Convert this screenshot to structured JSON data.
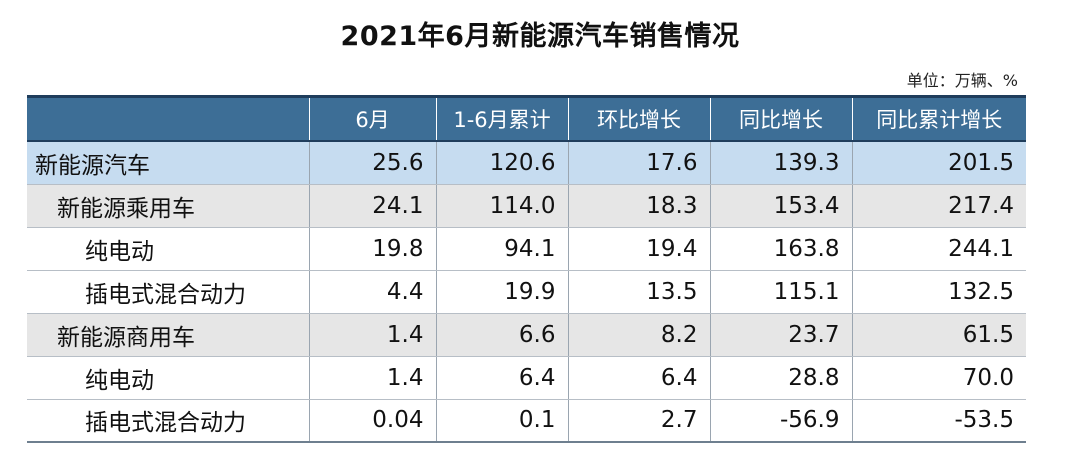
{
  "title": "2021年6月新能源汽车销售情况",
  "unit": "单位：万辆、%",
  "chart_data": {
    "type": "table",
    "title": "2021年6月新能源汽车销售情况",
    "unit": "单位：万辆、%",
    "columns": [
      "",
      "6月",
      "1-6月累计",
      "环比增长",
      "同比增长",
      "同比累计增长"
    ],
    "rows": [
      {
        "name": "新能源汽车",
        "level": 0,
        "values": [
          "25.6",
          "120.6",
          "17.6",
          "139.3",
          "201.5"
        ]
      },
      {
        "name": "新能源乘用车",
        "level": 1,
        "values": [
          "24.1",
          "114.0",
          "18.3",
          "153.4",
          "217.4"
        ]
      },
      {
        "name": "纯电动",
        "level": 2,
        "values": [
          "19.8",
          "94.1",
          "19.4",
          "163.8",
          "244.1"
        ]
      },
      {
        "name": "插电式混合动力",
        "level": 2,
        "values": [
          "4.4",
          "19.9",
          "13.5",
          "115.1",
          "132.5"
        ]
      },
      {
        "name": "新能源商用车",
        "level": 1,
        "values": [
          "1.4",
          "6.6",
          "8.2",
          "23.7",
          "61.5"
        ]
      },
      {
        "name": "纯电动",
        "level": 2,
        "values": [
          "1.4",
          "6.4",
          "6.4",
          "28.8",
          "70.0"
        ]
      },
      {
        "name": "插电式混合动力",
        "level": 2,
        "values": [
          "0.04",
          "0.1",
          "2.7",
          "-56.9",
          "-53.5"
        ]
      }
    ],
    "colors": {
      "header_bg": "#3d6e96",
      "header_text": "#ffffff",
      "total_row_bg": "#c6dcf0",
      "category_row_bg": "#e6e6e6",
      "detail_row_bg": "#ffffff"
    }
  }
}
